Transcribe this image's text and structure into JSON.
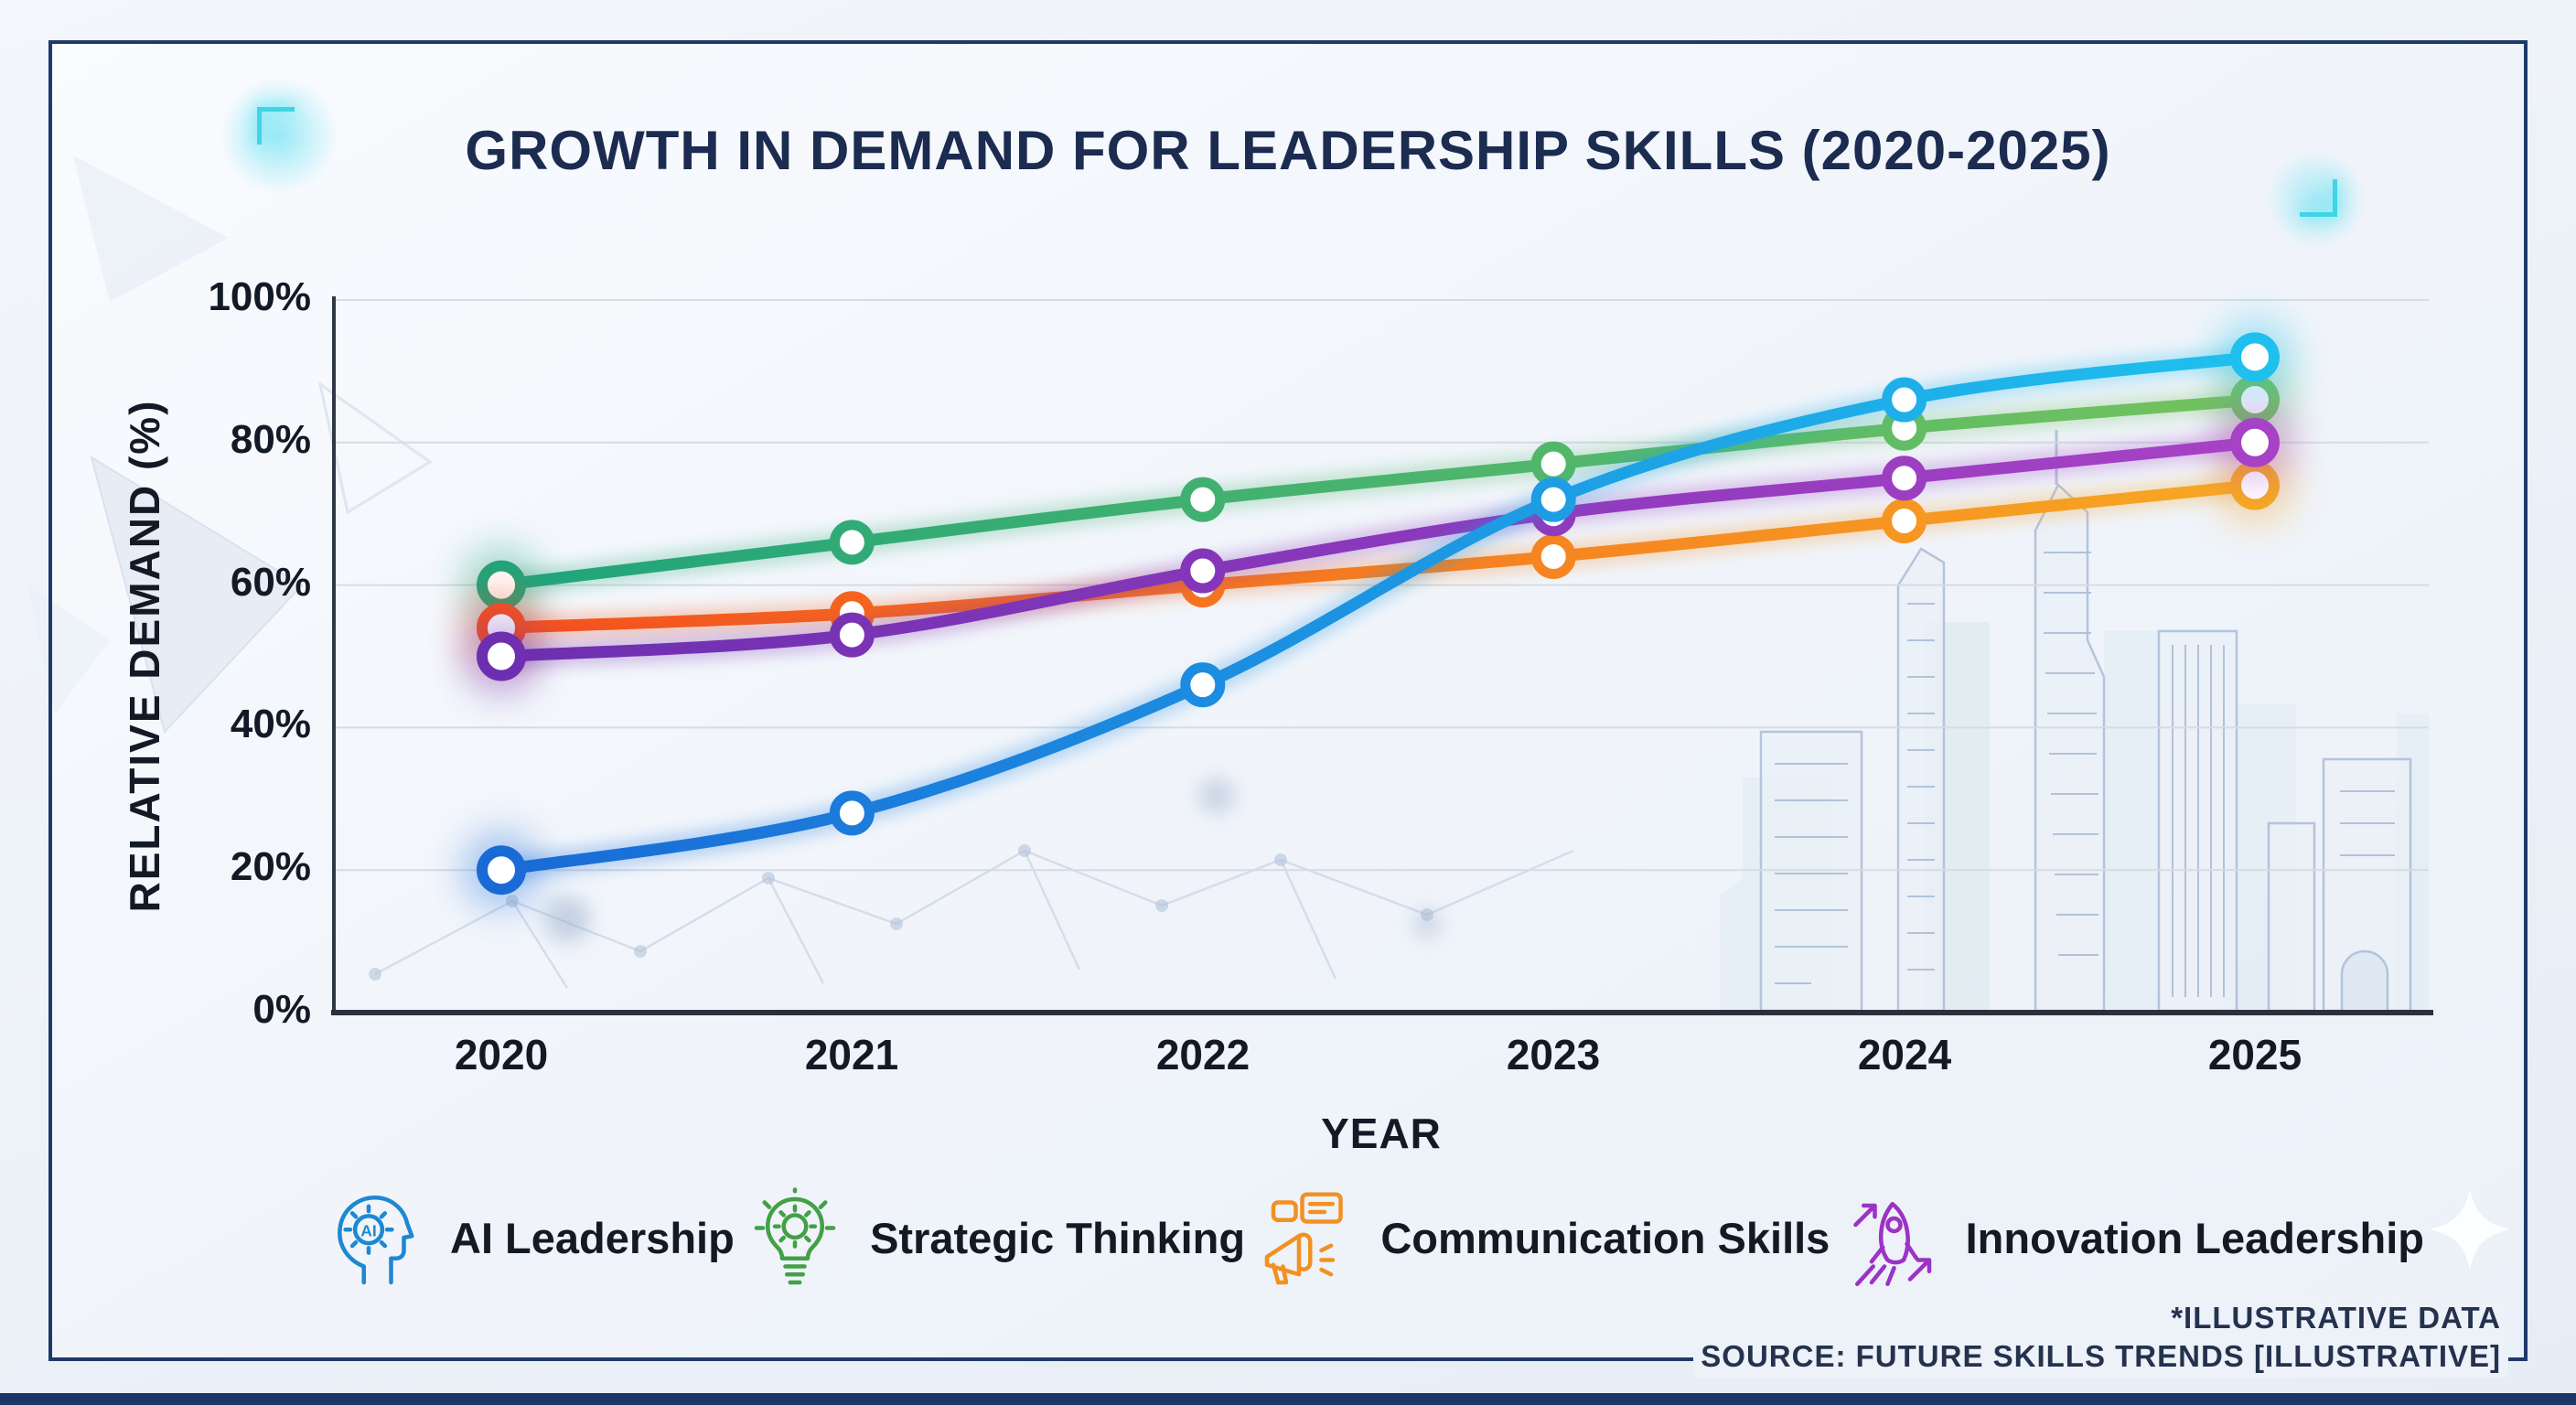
{
  "title": "GROWTH IN DEMAND FOR LEADERSHIP SKILLS (2020-2025)",
  "axes": {
    "y_label": "RELATIVE DEMAND (%)",
    "x_label": "YEAR",
    "y_ticks": [
      "0%",
      "20%",
      "40%",
      "60%",
      "80%",
      "100%"
    ],
    "x_ticks": [
      "2020",
      "2021",
      "2022",
      "2023",
      "2024",
      "2025"
    ]
  },
  "chart_data": {
    "type": "line",
    "title": "GROWTH IN DEMAND FOR LEADERSHIP SKILLS (2020-2025)",
    "xlabel": "YEAR",
    "ylabel": "RELATIVE DEMAND (%)",
    "x": [
      2020,
      2021,
      2022,
      2023,
      2024,
      2025
    ],
    "ylim": [
      0,
      100
    ],
    "y_tick_values": [
      0,
      20,
      40,
      60,
      80,
      100
    ],
    "grid": true,
    "legend_position": "bottom",
    "series": [
      {
        "name": "AI Leadership",
        "values": [
          20,
          28,
          46,
          72,
          86,
          92
        ],
        "color_start": "#1a6ad6",
        "color_end": "#1fc0ee",
        "icon_color": "#1e88d2",
        "icon": "ai-head-icon"
      },
      {
        "name": "Strategic Thinking",
        "values": [
          60,
          66,
          72,
          77,
          82,
          86
        ],
        "color_start": "#1fa47c",
        "color_end": "#74c35e",
        "icon_color": "#43a047",
        "icon": "lightbulb-gear-icon"
      },
      {
        "name": "Communication Skills",
        "values": [
          54,
          56,
          60,
          64,
          69,
          74
        ],
        "color_start": "#f4511e",
        "color_end": "#f7a823",
        "icon_color": "#f29122",
        "icon": "megaphone-icon"
      },
      {
        "name": "Innovation Leadership",
        "values": [
          50,
          53,
          62,
          70,
          75,
          80
        ],
        "color_start": "#6d2fb0",
        "color_end": "#a742c6",
        "icon_color": "#9c33c4",
        "icon": "rocket-icon"
      }
    ]
  },
  "footer": {
    "note": "*ILLUSTRATIVE DATA",
    "source": "SOURCE: FUTURE SKILLS TRENDS [ILLUSTRATIVE]"
  },
  "colors": {
    "frame": "#1e3a6b",
    "accent_cyan": "#3fd4e6",
    "background": "#eef2f8",
    "bottom_bar": "#1c3767",
    "gridline": "#d6dbe4",
    "axis": "#313845",
    "title_text": "#1c2b50"
  }
}
